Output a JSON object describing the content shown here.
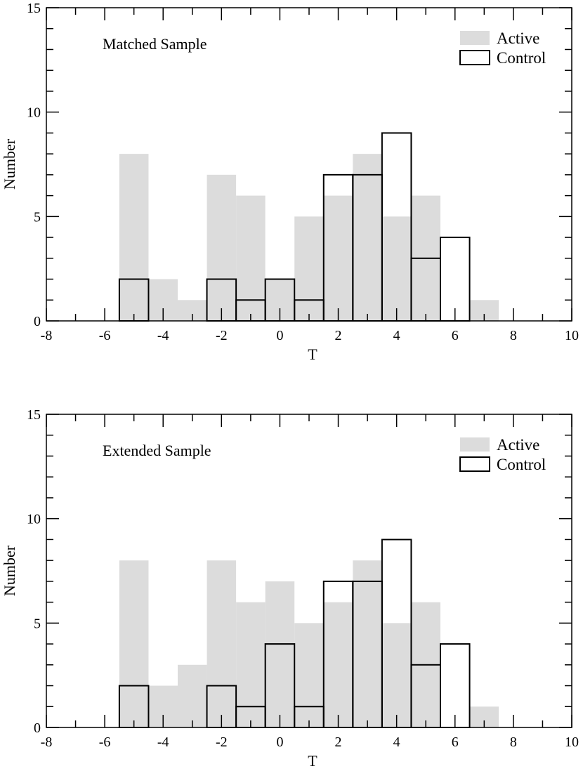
{
  "colors": {
    "active_fill": "#dcdcdc",
    "control_stroke": "#000000",
    "axis": "#000000",
    "background": "#ffffff"
  },
  "chart_data": [
    {
      "type": "bar",
      "title": "Matched Sample",
      "xlabel": "T",
      "ylabel": "Number",
      "xlim": [
        -8,
        10
      ],
      "ylim": [
        0,
        15
      ],
      "bin_width": 1,
      "x_ticks": [
        -8,
        -6,
        -4,
        -2,
        0,
        2,
        4,
        6,
        8,
        10
      ],
      "y_ticks": [
        0,
        5,
        10,
        15
      ],
      "legend_position": "top-right",
      "legend": [
        {
          "name": "Active",
          "style": "filled"
        },
        {
          "name": "Control",
          "style": "outline"
        }
      ],
      "bin_centers": [
        -7,
        -6,
        -5,
        -4,
        -3,
        -2,
        -1,
        0,
        1,
        2,
        3,
        4,
        5,
        6,
        7,
        8,
        9
      ],
      "series": [
        {
          "name": "Active",
          "values": [
            0,
            0,
            8,
            2,
            1,
            7,
            6,
            2,
            5,
            6,
            8,
            5,
            6,
            0,
            1,
            0,
            0
          ]
        },
        {
          "name": "Control",
          "values": [
            0,
            0,
            2,
            0,
            0,
            2,
            1,
            2,
            1,
            7,
            7,
            9,
            3,
            4,
            0,
            0,
            0
          ]
        }
      ]
    },
    {
      "type": "bar",
      "title": "Extended Sample",
      "xlabel": "T",
      "ylabel": "Number",
      "xlim": [
        -8,
        10
      ],
      "ylim": [
        0,
        15
      ],
      "bin_width": 1,
      "x_ticks": [
        -8,
        -6,
        -4,
        -2,
        0,
        2,
        4,
        6,
        8,
        10
      ],
      "y_ticks": [
        0,
        5,
        10,
        15
      ],
      "legend_position": "top-right",
      "legend": [
        {
          "name": "Active",
          "style": "filled"
        },
        {
          "name": "Control",
          "style": "outline"
        }
      ],
      "bin_centers": [
        -7,
        -6,
        -5,
        -4,
        -3,
        -2,
        -1,
        0,
        1,
        2,
        3,
        4,
        5,
        6,
        7,
        8,
        9
      ],
      "series": [
        {
          "name": "Active",
          "values": [
            0,
            0,
            8,
            2,
            3,
            8,
            6,
            7,
            5,
            6,
            8,
            5,
            6,
            0,
            1,
            0,
            0
          ]
        },
        {
          "name": "Control",
          "values": [
            0,
            0,
            2,
            0,
            0,
            2,
            1,
            4,
            1,
            7,
            7,
            9,
            3,
            4,
            0,
            0,
            0
          ]
        }
      ]
    }
  ]
}
